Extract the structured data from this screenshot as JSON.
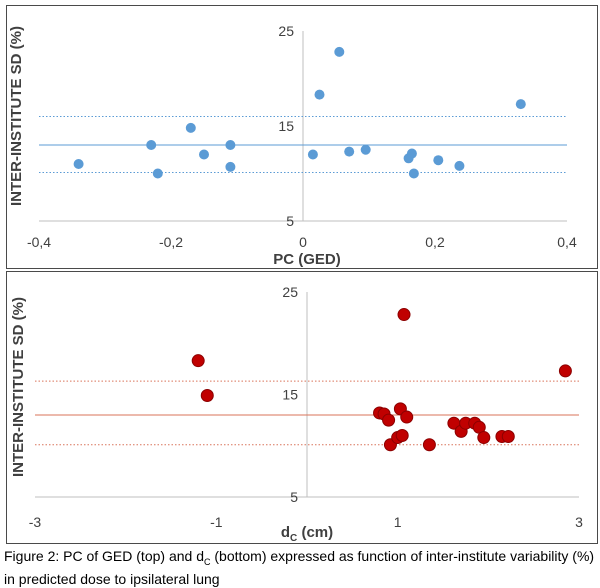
{
  "chart_data": [
    {
      "type": "scatter",
      "title": "",
      "xlabel": "PC (GED)",
      "ylabel": "INTER-INSTITUTE SD (%)",
      "xlim": [
        -0.4,
        0.4
      ],
      "ylim": [
        5,
        25
      ],
      "x_ticks": [
        "-0,4",
        "-0,2",
        "0",
        "0,2",
        "0,4"
      ],
      "y_ticks": [
        "25",
        "15",
        "5"
      ],
      "marker_color": "#5b9bd5",
      "line_color": "#5b9bd5",
      "mean": 13.0,
      "band": [
        10.1,
        16.0
      ],
      "series": [
        {
          "x": [
            -0.34,
            -0.23,
            -0.22,
            -0.17,
            -0.15,
            -0.11,
            -0.11,
            0.015,
            0.025,
            0.055,
            0.07,
            0.095,
            0.16,
            0.165,
            0.168,
            0.205,
            0.237,
            0.33
          ],
          "y": [
            11.0,
            13.0,
            10.0,
            14.8,
            12.0,
            13.0,
            10.7,
            12.0,
            18.3,
            22.8,
            12.3,
            12.5,
            11.6,
            12.1,
            10.0,
            11.4,
            10.8,
            17.3
          ]
        }
      ]
    },
    {
      "type": "scatter",
      "title": "",
      "xlabel": "d",
      "xlabel_sub": "C",
      "xlabel_unit": " (cm)",
      "ylabel": "INTER-INSTITUTE SD (%)",
      "xlim": [
        -3,
        3
      ],
      "ylim": [
        5,
        25
      ],
      "x_ticks": [
        "-3",
        "-1",
        "1",
        "3"
      ],
      "y_ticks": [
        "25",
        "15",
        "5"
      ],
      "marker_color": "#c00000",
      "marker_edge": "#8b0000",
      "line_color": "#d9735a",
      "mean": 13.0,
      "band": [
        10.1,
        16.3
      ],
      "series": [
        {
          "x": [
            -1.2,
            -1.1,
            0.8,
            0.85,
            0.9,
            0.92,
            1.0,
            1.03,
            1.05,
            1.07,
            1.1,
            1.35,
            1.62,
            1.7,
            1.75,
            1.85,
            1.9,
            1.95,
            2.15,
            2.22,
            2.85
          ],
          "y": [
            18.3,
            14.9,
            13.2,
            13.1,
            12.5,
            10.1,
            10.8,
            13.6,
            11.0,
            22.8,
            12.8,
            10.1,
            12.2,
            11.4,
            12.2,
            12.2,
            11.8,
            10.8,
            10.9,
            10.9,
            17.3
          ]
        }
      ]
    }
  ],
  "caption": {
    "part1": "Figure 2: PC of GED (top) and d",
    "sub": "C",
    "part2": " (bottom) expressed as function of inter-institute variability (%) in predicted dose to ipsilateral lung"
  }
}
